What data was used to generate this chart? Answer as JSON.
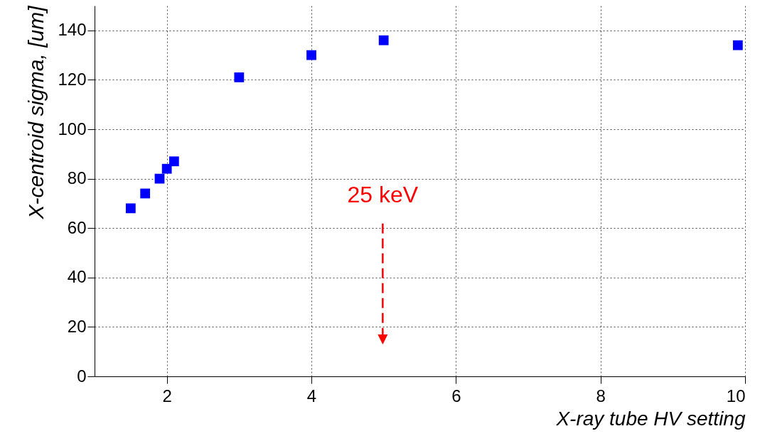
{
  "chart_data": {
    "type": "scatter",
    "xlabel": "X-ray tube HV setting",
    "ylabel": "X-centroid sigma, [um]",
    "x": [
      1.5,
      1.7,
      1.9,
      2.0,
      2.1,
      3,
      4,
      5,
      9.9
    ],
    "series": [
      {
        "color": "#0000ff",
        "values": [
          68,
          74,
          80,
          84,
          87,
          121,
          130,
          136,
          134
        ]
      }
    ],
    "xlim": [
      1,
      10
    ],
    "xticks": [
      2,
      4,
      6,
      8,
      10
    ],
    "ylim": [
      0,
      150
    ],
    "yticks": [
      0,
      20,
      40,
      60,
      80,
      100,
      120,
      140
    ],
    "grid": true,
    "marker": "square",
    "annotations": [
      "25 keV"
    ]
  }
}
